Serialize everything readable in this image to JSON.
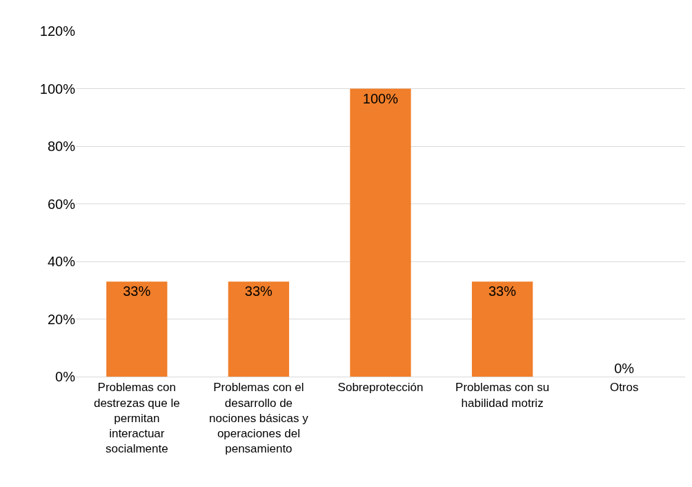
{
  "chart_data": {
    "type": "bar",
    "categories": [
      "Problemas con destrezas que le permitan interactuar socialmente",
      "Problemas con el desarrollo de nociones básicas y operaciones del pensamiento",
      "Sobreprotección",
      "Problemas con su habilidad motriz",
      "Otros"
    ],
    "values": [
      33,
      33,
      100,
      33,
      0
    ],
    "value_labels": [
      "33%",
      "33%",
      "100%",
      "33%",
      "0%"
    ],
    "color": "#f07e2a",
    "ylim": [
      0,
      120
    ],
    "yticks": [
      {
        "value": 0,
        "label": "0%"
      },
      {
        "value": 20,
        "label": "20%"
      },
      {
        "value": 40,
        "label": "40%"
      },
      {
        "value": 60,
        "label": "60%"
      },
      {
        "value": 80,
        "label": "80%"
      },
      {
        "value": 100,
        "label": "100%"
      },
      {
        "value": 120,
        "label": "120%"
      }
    ],
    "grid": "y"
  }
}
